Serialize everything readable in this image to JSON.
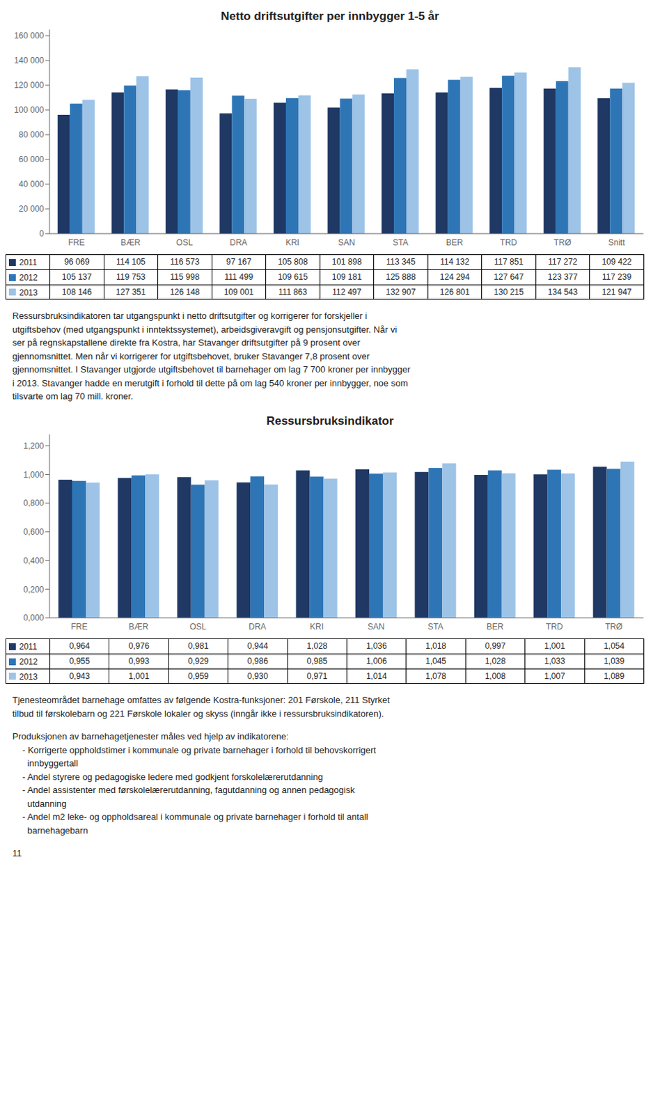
{
  "chart_data": [
    {
      "type": "bar",
      "title": "Netto driftsutgifter per innbygger 1-5 år",
      "categories": [
        "FRE",
        "BÆR",
        "OSL",
        "DRA",
        "KRI",
        "SAN",
        "STA",
        "BER",
        "TRD",
        "TRØ",
        "Snitt"
      ],
      "series": [
        {
          "name": "2011",
          "color": "#1F3864",
          "values": [
            96069,
            114105,
            116573,
            97167,
            105808,
            101898,
            113345,
            114132,
            117851,
            117272,
            109422
          ],
          "value_labels": [
            "96 069",
            "114 105",
            "116 573",
            "97 167",
            "105 808",
            "101 898",
            "113 345",
            "114 132",
            "117 851",
            "117 272",
            "109 422"
          ]
        },
        {
          "name": "2012",
          "color": "#2E75B6",
          "values": [
            105137,
            119753,
            115998,
            111499,
            109615,
            109181,
            125888,
            124294,
            127647,
            123377,
            117239
          ],
          "value_labels": [
            "105 137",
            "119 753",
            "115 998",
            "111 499",
            "109 615",
            "109 181",
            "125 888",
            "124 294",
            "127 647",
            "123 377",
            "117 239"
          ]
        },
        {
          "name": "2013",
          "color": "#9DC3E6",
          "values": [
            108146,
            127351,
            126148,
            109001,
            111863,
            112497,
            132907,
            126801,
            130215,
            134543,
            121947
          ],
          "value_labels": [
            "108 146",
            "127 351",
            "126 148",
            "109 001",
            "111 863",
            "112 497",
            "132 907",
            "126 801",
            "130 215",
            "134 543",
            "121 947"
          ]
        }
      ],
      "ylim": [
        0,
        165000
      ],
      "yticks": [
        0,
        {
          "value": 20000,
          "label": "20 000"
        },
        {
          "value": 40000,
          "label": "40 000"
        },
        {
          "value": 60000,
          "label": "60 000"
        },
        {
          "value": 80000,
          "label": "80 000"
        },
        {
          "value": 100000,
          "label": "100 000"
        },
        {
          "value": 120000,
          "label": "120 000"
        },
        {
          "value": 140000,
          "label": "140 000"
        },
        {
          "value": 160000,
          "label": "160 000"
        }
      ],
      "grid": false,
      "annotations": [
        "Ressursbruksindikatoren tar utgangspunkt i netto driftsutgifter og korrigerer for forskjeller i\nutgiftsbehov (med utgangspunkt i inntektssystemet), arbeidsgiveravgift og pensjonsutgifter. Når vi\nser på regnskapstallene direkte fra Kostra, har Stavanger driftsutgifter på 9 prosent over\ngjennomsnittet. Men når vi korrigerer for utgiftsbehovet, bruker Stavanger 7,8 prosent over\ngjennomsnittet. I Stavanger utgjorde utgiftsbehovet til barnehager om lag 7 700 kroner per innbygger\ni 2013. Stavanger hadde en merutgift i forhold til dette på om lag 540 kroner per innbygger, noe som\ntilsvarte om lag 70 mill. kroner."
      ]
    },
    {
      "type": "bar",
      "title": "Ressursbruksindikator",
      "categories": [
        "FRE",
        "BÆR",
        "OSL",
        "DRA",
        "KRI",
        "SAN",
        "STA",
        "BER",
        "TRD",
        "TRØ"
      ],
      "series": [
        {
          "name": "2011",
          "color": "#1F3864",
          "values": [
            0.964,
            0.976,
            0.981,
            0.944,
            1.028,
            1.036,
            1.018,
            0.997,
            1.001,
            1.054
          ],
          "value_labels": [
            "0,964",
            "0,976",
            "0,981",
            "0,944",
            "1,028",
            "1,036",
            "1,018",
            "0,997",
            "1,001",
            "1,054"
          ]
        },
        {
          "name": "2012",
          "color": "#2E75B6",
          "values": [
            0.955,
            0.993,
            0.929,
            0.986,
            0.985,
            1.006,
            1.045,
            1.028,
            1.033,
            1.039
          ],
          "value_labels": [
            "0,955",
            "0,993",
            "0,929",
            "0,986",
            "0,985",
            "1,006",
            "1,045",
            "1,028",
            "1,033",
            "1,039"
          ]
        },
        {
          "name": "2013",
          "color": "#9DC3E6",
          "values": [
            0.943,
            1.001,
            0.959,
            0.93,
            0.971,
            1.014,
            1.078,
            1.008,
            1.007,
            1.089
          ],
          "value_labels": [
            "0,943",
            "1,001",
            "0,959",
            "0,930",
            "0,971",
            "1,014",
            "1,078",
            "1,008",
            "1,007",
            "1,089"
          ]
        }
      ],
      "ylim": [
        0.0,
        1.28
      ],
      "yticks": [
        {
          "value": 0.0,
          "label": "0,000"
        },
        {
          "value": 0.2,
          "label": "0,200"
        },
        {
          "value": 0.4,
          "label": "0,400"
        },
        {
          "value": 0.6,
          "label": "0,600"
        },
        {
          "value": 0.8,
          "label": "0,800"
        },
        {
          "value": 1.0,
          "label": "1,000"
        },
        {
          "value": 1.2,
          "label": "1,200"
        }
      ],
      "grid": false,
      "annotations": [
        "Tjenesteområdet barnehage omfattes av følgende Kostra-funksjoner: 201 Førskole, 211 Styrket\ntilbud til førskolebarn og 221 Førskole lokaler og skyss (inngår ikke i ressursbruksindikatoren).",
        "Produksjonen av barnehagetjenester måles ved hjelp av indikatorene:\n    - Korrigerte oppholdstimer i kommunale og private barnehager i forhold til behovskorrigert\n      innbyggertall\n    - Andel styrere og pedagogiske ledere med godkjent forskolelærerutdanning\n    - Andel assistenter med førskolelærerutdanning, fagutdanning og annen pedagogisk\n      utdanning\n    - Andel m2 leke- og oppholdsareal i kommunale og private barnehager i forhold til antall\n      barnehagebarn",
        "11"
      ]
    }
  ]
}
